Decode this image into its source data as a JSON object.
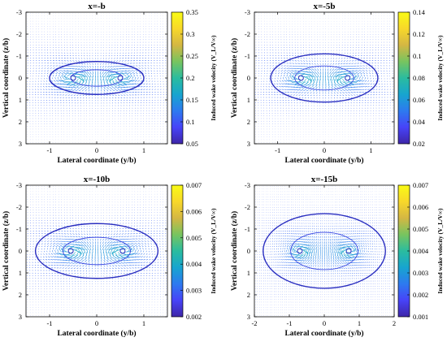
{
  "colormap": [
    "#3e26a8",
    "#4743f8",
    "#2d7aef",
    "#17a5cf",
    "#2bbc9f",
    "#78c45f",
    "#d4b743",
    "#f8d82a",
    "#f9fb15"
  ],
  "chart_data": [
    {
      "type": "quiver",
      "title": "x=-b",
      "xlabel": "Lateral coordinate (y/b)",
      "ylabel": "Vertical coordinate (z/b)",
      "colorbar_label": "Induced wake velocity (V_L/V∞)",
      "xlim": [
        -1.5,
        1.5
      ],
      "ylim": [
        -3,
        3
      ],
      "y_reversed": true,
      "xticks": [
        -1,
        0,
        1
      ],
      "yticks": [
        -3,
        -2,
        -1,
        0,
        1,
        2,
        3
      ],
      "colorbar_range": [
        0.05,
        0.35
      ],
      "colorbar_ticks": [
        "0.05",
        "0.1",
        "0.15",
        "0.2",
        "0.25",
        "0.3",
        "0.35"
      ],
      "vortex_cores": [
        [
          -0.5,
          0
        ],
        [
          0.5,
          0
        ]
      ],
      "oval_semi_axes": [
        1.0,
        0.75
      ]
    },
    {
      "type": "quiver",
      "title": "x=-5b",
      "xlabel": "Lateral coordinate (y/b)",
      "ylabel": "Vertical coordinate (z/b)",
      "colorbar_label": "Induced wake velocity (V_L/V∞)",
      "xlim": [
        -1.5,
        1.5
      ],
      "ylim": [
        -3,
        3
      ],
      "y_reversed": true,
      "xticks": [
        -1,
        0,
        1
      ],
      "yticks": [
        -3,
        -2,
        -1,
        0,
        1,
        2,
        3
      ],
      "colorbar_range": [
        0.02,
        0.14
      ],
      "colorbar_ticks": [
        "0.02",
        "0.04",
        "0.06",
        "0.08",
        "0.1",
        "0.12",
        "0.14"
      ],
      "vortex_cores": [
        [
          -0.5,
          0
        ],
        [
          0.5,
          0
        ]
      ],
      "oval_semi_axes": [
        1.15,
        1.1
      ]
    },
    {
      "type": "quiver",
      "title": "x=-10b",
      "xlabel": "Lateral coordinate (y/b)",
      "ylabel": "Vertical coordinate (z/b)",
      "colorbar_label": "Induced wake velocity (V_L/V∞)",
      "xlim": [
        -1.5,
        1.5
      ],
      "ylim": [
        -3,
        3
      ],
      "y_reversed": true,
      "xticks": [
        -1,
        0,
        1
      ],
      "yticks": [
        -3,
        -2,
        -1,
        0,
        1,
        2,
        3
      ],
      "colorbar_range": [
        0.002,
        0.007
      ],
      "colorbar_ticks": [
        "0.002",
        "0.003",
        "0.004",
        "0.005",
        "0.006",
        "0.007"
      ],
      "vortex_cores": [
        [
          -0.55,
          0
        ],
        [
          0.55,
          0
        ]
      ],
      "oval_semi_axes": [
        1.3,
        1.25
      ]
    },
    {
      "type": "quiver",
      "title": "x=-15b",
      "xlabel": "Lateral coordinate (y/b)",
      "ylabel": "Vertical coordinate (z/b)",
      "colorbar_label": "Induced wake velocity (V_L/V∞)",
      "xlim": [
        -2,
        2
      ],
      "ylim": [
        -3,
        3
      ],
      "y_reversed": true,
      "xticks": [
        -2,
        -1,
        0,
        1,
        2
      ],
      "yticks": [
        -3,
        -2,
        -1,
        0,
        1,
        2,
        3
      ],
      "colorbar_range": [
        0.001,
        0.007
      ],
      "colorbar_ticks": [
        "0.001",
        "0.002",
        "0.003",
        "0.004",
        "0.005",
        "0.006",
        "0.007"
      ],
      "vortex_cores": [
        [
          -0.7,
          0
        ],
        [
          0.7,
          0
        ]
      ],
      "oval_semi_axes": [
        1.75,
        1.7
      ]
    }
  ]
}
